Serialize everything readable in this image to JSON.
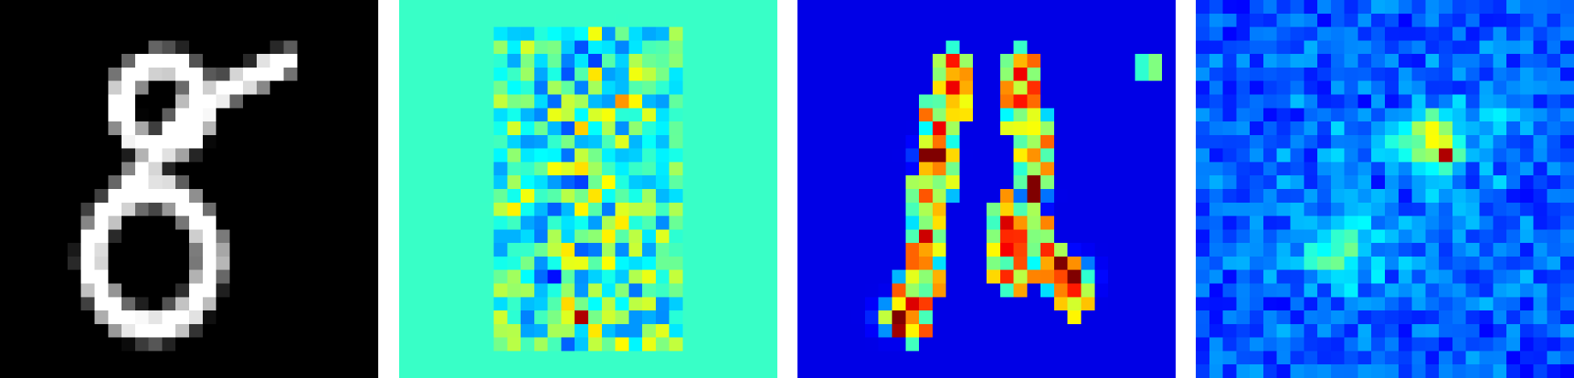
{
  "figure": {
    "panels": [
      {
        "kind": "input-digit",
        "colormap": "gray"
      },
      {
        "kind": "attribution-signed",
        "colormap": "jet"
      },
      {
        "kind": "attribution-magnitude",
        "colormap": "jet"
      },
      {
        "kind": "attribution-noise",
        "colormap": "jet"
      }
    ]
  }
}
